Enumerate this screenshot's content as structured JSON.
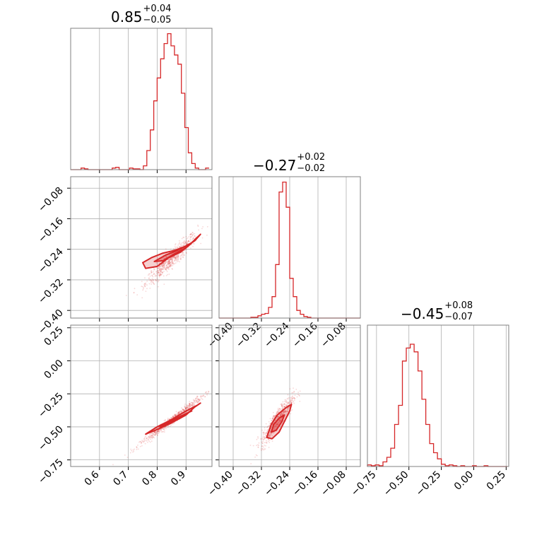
{
  "chart_data": [
    {
      "id": "hist_p1",
      "type": "bar",
      "panel": "diag-1",
      "title": {
        "median": "0.85",
        "plus": "+0.04",
        "minus": "−0.05"
      },
      "xlim": [
        0.5,
        0.99
      ],
      "ylim": [
        0,
        185
      ],
      "xticks": [
        0.6,
        0.7,
        0.8,
        0.9
      ],
      "bin_edges": [
        0.5,
        0.512,
        0.524,
        0.536,
        0.548,
        0.56,
        0.572,
        0.584,
        0.596,
        0.608,
        0.62,
        0.632,
        0.644,
        0.656,
        0.668,
        0.68,
        0.692,
        0.704,
        0.716,
        0.728,
        0.74,
        0.752,
        0.764,
        0.776,
        0.788,
        0.8,
        0.812,
        0.824,
        0.836,
        0.848,
        0.86,
        0.872,
        0.884,
        0.896,
        0.908,
        0.92,
        0.932,
        0.944,
        0.956,
        0.968,
        0.98
      ],
      "values": [
        0,
        0,
        0,
        2,
        1,
        0,
        0,
        0,
        0,
        0,
        0,
        0,
        2,
        3,
        0,
        0,
        0,
        2,
        1,
        1,
        0,
        5,
        25,
        52,
        90,
        120,
        145,
        165,
        178,
        162,
        150,
        138,
        100,
        55,
        22,
        8,
        2,
        0,
        0,
        2
      ]
    },
    {
      "id": "hist_p2",
      "type": "bar",
      "panel": "diag-2",
      "title": {
        "median": "−0.27",
        "plus": "+0.02",
        "minus": "−0.02"
      },
      "xlim": [
        -0.44,
        -0.04
      ],
      "ylim": [
        0,
        185
      ],
      "xticks": [
        -0.4,
        -0.32,
        -0.24,
        -0.16,
        -0.08
      ],
      "bin_edges": [
        -0.44,
        -0.43,
        -0.42,
        -0.41,
        -0.4,
        -0.39,
        -0.38,
        -0.37,
        -0.36,
        -0.35,
        -0.34,
        -0.33,
        -0.32,
        -0.31,
        -0.3,
        -0.29,
        -0.28,
        -0.27,
        -0.26,
        -0.25,
        -0.24,
        -0.23,
        -0.22,
        -0.21,
        -0.2,
        -0.19,
        -0.18,
        -0.17,
        -0.16,
        -0.15,
        -0.14,
        -0.13,
        -0.12,
        -0.11,
        -0.1,
        -0.09,
        -0.08,
        -0.07,
        -0.06,
        -0.05,
        -0.04
      ],
      "values": [
        0,
        0,
        0,
        0,
        0,
        0,
        0,
        0,
        0,
        1,
        1,
        3,
        5,
        6,
        14,
        28,
        70,
        165,
        178,
        145,
        52,
        28,
        10,
        5,
        2,
        1,
        0,
        0,
        0,
        0,
        0,
        0,
        0,
        0,
        0,
        0,
        0,
        0,
        0,
        0
      ]
    },
    {
      "id": "hist_p3",
      "type": "bar",
      "panel": "diag-3",
      "title": {
        "median": "−0.45",
        "plus": "+0.08",
        "minus": "−0.07"
      },
      "xlim": [
        -0.82,
        0.27
      ],
      "ylim": [
        0,
        185
      ],
      "xticks": [
        -0.75,
        -0.5,
        -0.25,
        0.0,
        0.25
      ],
      "bin_edges": [
        -0.82,
        -0.79,
        -0.76,
        -0.73,
        -0.7,
        -0.67,
        -0.64,
        -0.61,
        -0.58,
        -0.55,
        -0.52,
        -0.49,
        -0.46,
        -0.43,
        -0.4,
        -0.37,
        -0.34,
        -0.31,
        -0.28,
        -0.25,
        -0.22,
        -0.19,
        -0.16,
        -0.13,
        -0.1,
        -0.07,
        -0.04,
        -0.01,
        0.02,
        0.05,
        0.08,
        0.11,
        0.14,
        0.17,
        0.2,
        0.23,
        0.26
      ],
      "values": [
        2,
        1,
        2,
        1,
        6,
        12,
        24,
        55,
        80,
        138,
        155,
        160,
        150,
        125,
        88,
        55,
        30,
        18,
        10,
        3,
        1,
        2,
        1,
        0,
        1,
        0,
        0,
        1,
        0,
        0,
        1,
        0,
        0,
        0,
        0,
        0
      ]
    },
    {
      "id": "scatter_p1_p2",
      "type": "scatter",
      "panel": "pair-1-2",
      "xlim": [
        0.5,
        0.99
      ],
      "ylim": [
        -0.42,
        -0.05
      ],
      "xticks": [
        0.6,
        0.7,
        0.8,
        0.9
      ],
      "yticks": [
        -0.08,
        -0.16,
        -0.24,
        -0.32,
        -0.4
      ],
      "contours": [
        {
          "x": [
            0.75,
            0.78,
            0.82,
            0.86,
            0.9,
            0.93,
            0.95,
            0.94,
            0.91,
            0.88,
            0.84,
            0.8,
            0.76,
            0.75
          ],
          "y": [
            -0.275,
            -0.262,
            -0.25,
            -0.243,
            -0.232,
            -0.218,
            -0.201,
            -0.208,
            -0.23,
            -0.248,
            -0.262,
            -0.285,
            -0.29,
            -0.275
          ]
        },
        {
          "x": [
            0.79,
            0.83,
            0.87,
            0.9,
            0.92,
            0.9,
            0.86,
            0.82,
            0.79
          ],
          "y": [
            -0.272,
            -0.255,
            -0.243,
            -0.231,
            -0.223,
            -0.236,
            -0.252,
            -0.27,
            -0.272
          ]
        }
      ],
      "cloud": {
        "x": [
          0.6,
          0.98
        ],
        "y": [
          -0.38,
          -0.18
        ]
      }
    },
    {
      "id": "scatter_p1_p3",
      "type": "scatter",
      "panel": "pair-1-3",
      "xlim": [
        0.5,
        0.99
      ],
      "ylim": [
        -0.8,
        0.27
      ],
      "xticks": [
        0.6,
        0.7,
        0.8,
        0.9
      ],
      "yticks": [
        0.25,
        0.0,
        -0.25,
        -0.5,
        -0.75
      ],
      "contours": [
        {
          "x": [
            0.76,
            0.8,
            0.85,
            0.9,
            0.93,
            0.95,
            0.94,
            0.9,
            0.85,
            0.8,
            0.76
          ],
          "y": [
            -0.555,
            -0.52,
            -0.47,
            -0.41,
            -0.35,
            -0.32,
            -0.335,
            -0.38,
            -0.445,
            -0.5,
            -0.555
          ]
        },
        {
          "x": [
            0.81,
            0.86,
            0.9,
            0.92,
            0.88,
            0.83,
            0.81
          ],
          "y": [
            -0.5,
            -0.45,
            -0.4,
            -0.38,
            -0.42,
            -0.475,
            -0.5
          ]
        }
      ],
      "cloud": {
        "x": [
          0.55,
          0.99
        ],
        "y": [
          -0.72,
          -0.15
        ]
      }
    },
    {
      "id": "scatter_p2_p3",
      "type": "scatter",
      "panel": "pair-2-3",
      "xlim": [
        -0.44,
        -0.04
      ],
      "ylim": [
        -0.8,
        0.27
      ],
      "xticks": [
        -0.4,
        -0.32,
        -0.24,
        -0.16,
        -0.08
      ],
      "yticks": [
        0.25,
        0.0,
        -0.25,
        -0.5,
        -0.75
      ],
      "contours": [
        {
          "x": [
            -0.305,
            -0.29,
            -0.27,
            -0.255,
            -0.24,
            -0.235,
            -0.248,
            -0.262,
            -0.275,
            -0.292,
            -0.305
          ],
          "y": [
            -0.58,
            -0.59,
            -0.54,
            -0.46,
            -0.38,
            -0.33,
            -0.35,
            -0.38,
            -0.41,
            -0.48,
            -0.58
          ]
        },
        {
          "x": [
            -0.292,
            -0.278,
            -0.262,
            -0.255,
            -0.268,
            -0.285,
            -0.292
          ],
          "y": [
            -0.54,
            -0.525,
            -0.46,
            -0.41,
            -0.43,
            -0.48,
            -0.54
          ]
        }
      ],
      "cloud": {
        "x": [
          -0.4,
          -0.06
        ],
        "y": [
          -0.7,
          0.1
        ]
      }
    }
  ]
}
